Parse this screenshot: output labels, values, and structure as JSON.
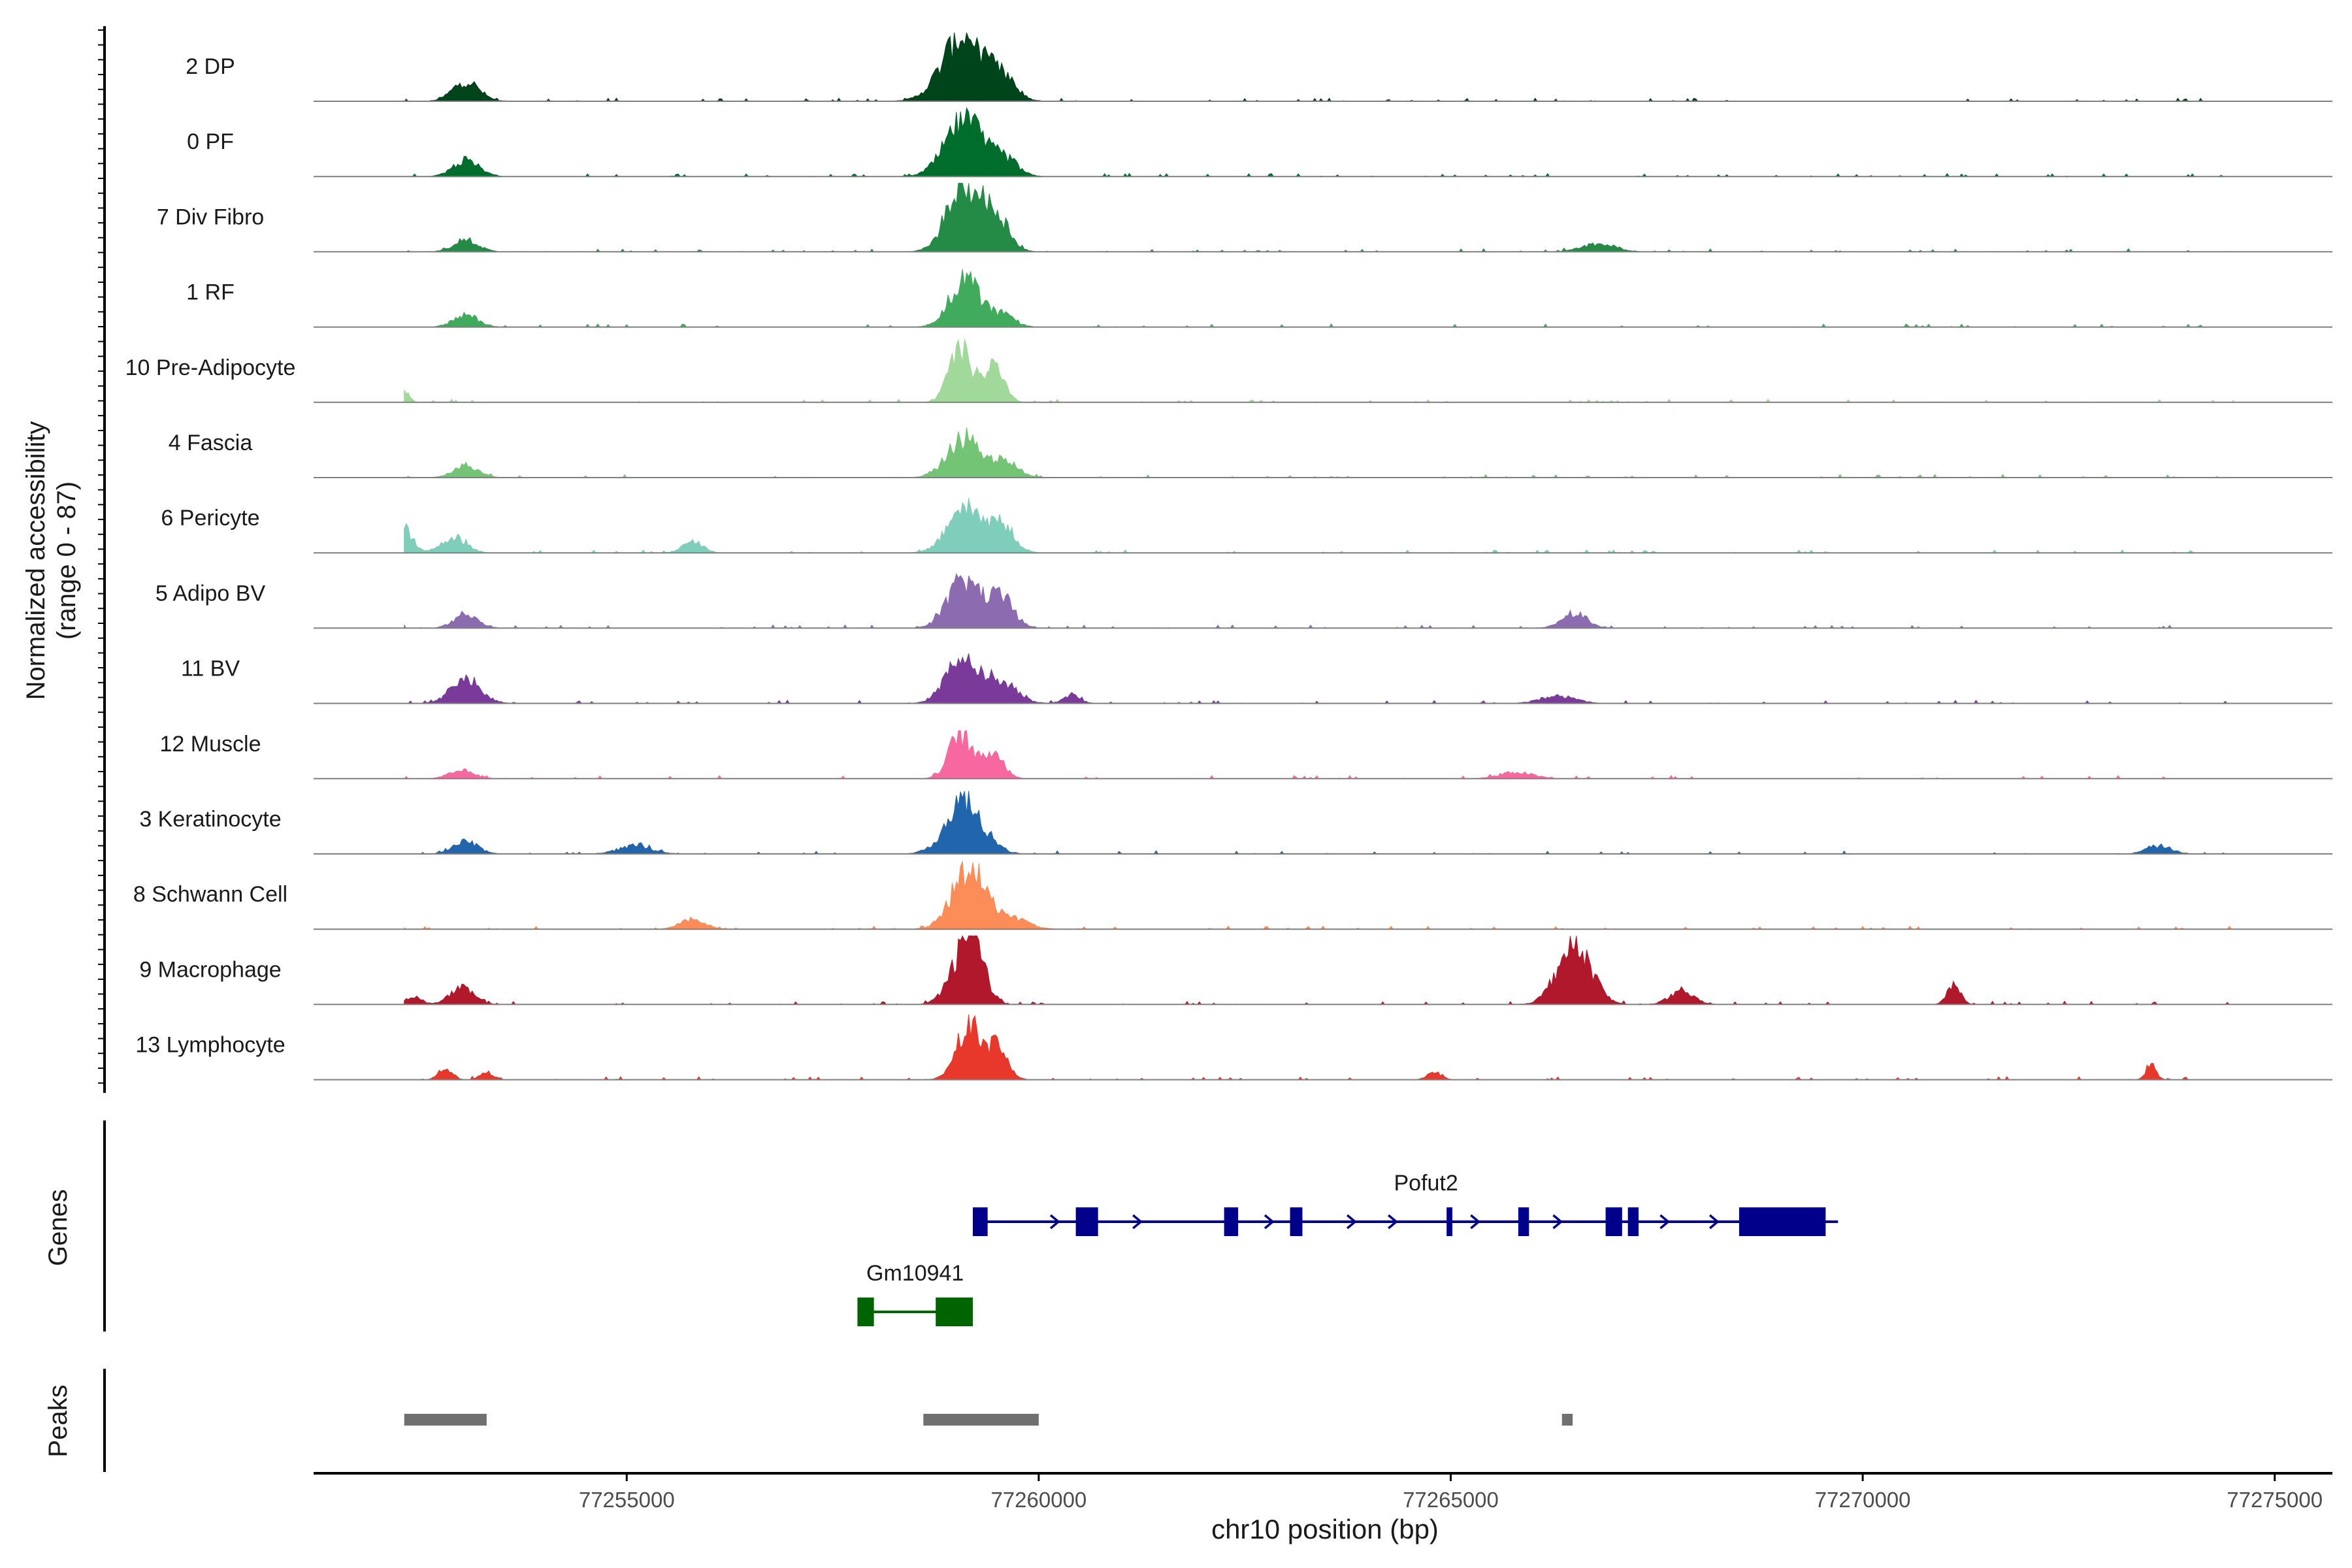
{
  "chart_data": {
    "type": "area",
    "title": "",
    "ylabel_line1": "Normalized accessibility",
    "ylabel_line2": "(range 0 - 87)",
    "xlabel": "chr10 position (bp)",
    "xlim": [
      77251200,
      77275700
    ],
    "ylim": [
      0,
      87
    ],
    "xticks": [
      77255000,
      77260000,
      77265000,
      77270000,
      77275000
    ],
    "xtick_labels": [
      "77255000",
      "77260000",
      "77265000",
      "77270000",
      "77275000"
    ],
    "track_labels": {
      "genes": "Genes",
      "peaks": "Peaks"
    },
    "series": [
      {
        "name": "2 DP",
        "color": "#00441b",
        "peaks": [
          [
            77253050,
            25,
            160
          ],
          [
            77259100,
            85,
            260
          ],
          [
            77259600,
            20,
            150
          ]
        ]
      },
      {
        "name": "0 PF",
        "color": "#006d2c",
        "peaks": [
          [
            77253050,
            20,
            160
          ],
          [
            77259100,
            70,
            230
          ],
          [
            77259600,
            20,
            150
          ]
        ]
      },
      {
        "name": "7 Div Fibro",
        "color": "#238b45",
        "peaks": [
          [
            77253050,
            15,
            150
          ],
          [
            77259100,
            87,
            200
          ],
          [
            77259500,
            40,
            150
          ],
          [
            77266800,
            10,
            200
          ]
        ]
      },
      {
        "name": "1 RF",
        "color": "#41ab5d",
        "peaks": [
          [
            77253050,
            15,
            150
          ],
          [
            77259100,
            60,
            180
          ],
          [
            77259550,
            15,
            150
          ]
        ]
      },
      {
        "name": "10 Pre-Adipocyte",
        "color": "#a1d99b",
        "peaks": [
          [
            77259050,
            65,
            140
          ],
          [
            77259450,
            45,
            120
          ],
          [
            77252300,
            15,
            60
          ]
        ]
      },
      {
        "name": "4 Fascia",
        "color": "#74c476",
        "peaks": [
          [
            77253050,
            15,
            150
          ],
          [
            77259100,
            50,
            200
          ],
          [
            77259600,
            20,
            150
          ]
        ]
      },
      {
        "name": "6 Pericyte",
        "color": "#7fcdbb",
        "peaks": [
          [
            77252300,
            30,
            100
          ],
          [
            77252900,
            20,
            150
          ],
          [
            77255800,
            15,
            120
          ],
          [
            77259100,
            60,
            200
          ],
          [
            77259550,
            35,
            150
          ]
        ]
      },
      {
        "name": "5 Adipo BV",
        "color": "#8c6bb1",
        "peaks": [
          [
            77253050,
            15,
            150
          ],
          [
            77259100,
            60,
            200
          ],
          [
            77259550,
            35,
            150
          ],
          [
            77266500,
            20,
            150
          ]
        ]
      },
      {
        "name": "11 BV",
        "color": "#7a3a9a",
        "peaks": [
          [
            77253050,
            30,
            180
          ],
          [
            77259050,
            60,
            180
          ],
          [
            77259500,
            30,
            200
          ],
          [
            77260400,
            10,
            100
          ],
          [
            77266300,
            10,
            200
          ]
        ]
      },
      {
        "name": "12 Muscle",
        "color": "#f768a1",
        "peaks": [
          [
            77259050,
            55,
            140
          ],
          [
            77259450,
            35,
            120
          ],
          [
            77253000,
            10,
            150
          ],
          [
            77265800,
            8,
            200
          ]
        ]
      },
      {
        "name": "3 Keratinocyte",
        "color": "#2166ac",
        "peaks": [
          [
            77253050,
            15,
            150
          ],
          [
            77255100,
            10,
            200
          ],
          [
            77259100,
            65,
            220
          ],
          [
            77273600,
            10,
            150
          ]
        ]
      },
      {
        "name": "8 Schwann Cell",
        "color": "#fc8d59",
        "peaks": [
          [
            77259150,
            75,
            200
          ],
          [
            77255800,
            12,
            150
          ],
          [
            77259650,
            15,
            200
          ]
        ]
      },
      {
        "name": "9 Macrophage",
        "color": "#b2182b",
        "peaks": [
          [
            77252400,
            10,
            100
          ],
          [
            77253000,
            20,
            150
          ],
          [
            77259000,
            30,
            150
          ],
          [
            77259200,
            80,
            140
          ],
          [
            77266500,
            80,
            200
          ],
          [
            77267800,
            15,
            150
          ],
          [
            77271100,
            25,
            80
          ]
        ]
      },
      {
        "name": "13 Lymphocyte",
        "color": "#e8382b",
        "peaks": [
          [
            77252800,
            15,
            80
          ],
          [
            77253300,
            10,
            80
          ],
          [
            77259150,
            70,
            150
          ],
          [
            77259500,
            40,
            120
          ],
          [
            77273500,
            20,
            60
          ],
          [
            77264800,
            10,
            80
          ]
        ]
      }
    ],
    "genes": [
      {
        "name": "Pofut2",
        "color": "#00008b",
        "start": 77259200,
        "end": 77269700,
        "exons": [
          [
            77259200,
            77259380
          ],
          [
            77260450,
            77260720
          ],
          [
            77262250,
            77262420
          ],
          [
            77263050,
            77263200
          ],
          [
            77264950,
            77265020
          ],
          [
            77265820,
            77265950
          ],
          [
            77266880,
            77267080
          ],
          [
            77267150,
            77267280
          ],
          [
            77268500,
            77269550
          ]
        ],
        "arrows": [
          77259270,
          77260200,
          77261200,
          77262800,
          77263800,
          77264300,
          77265300,
          77266300,
          77267600,
          77268200
        ]
      },
      {
        "name": "Gm10941",
        "color": "#006400",
        "start": 77257800,
        "end": 77259200,
        "exons": [
          [
            77257800,
            77258000
          ],
          [
            77258750,
            77259200
          ]
        ],
        "arrows": []
      }
    ],
    "peak_regions": [
      [
        77252300,
        77253300
      ],
      [
        77258600,
        77260000
      ],
      [
        77266350,
        77266480
      ]
    ]
  }
}
